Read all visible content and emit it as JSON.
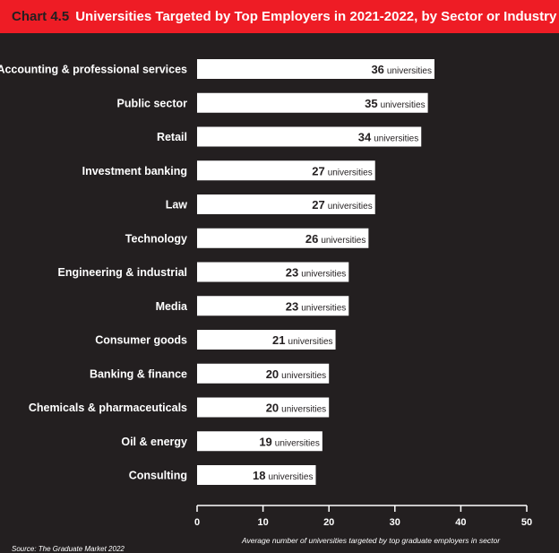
{
  "header": {
    "chart_number": "Chart 4.5",
    "title": "Universities Targeted by Top Employers in 2021-2022, by Sector or Industry"
  },
  "source": "Source: The Graduate Market 2022",
  "colors": {
    "background": "#231f20",
    "title_bar": "#ee1c25",
    "bars": "#ffffff",
    "text": "#ffffff"
  },
  "chart_data": {
    "type": "bar",
    "orientation": "horizontal",
    "categories": [
      "Accounting & professional services",
      "Public sector",
      "Retail",
      "Investment banking",
      "Law",
      "Technology",
      "Engineering & industrial",
      "Media",
      "Consumer goods",
      "Banking & finance",
      "Chemicals & pharmaceuticals",
      "Oil & energy",
      "Consulting"
    ],
    "values": [
      36,
      35,
      34,
      27,
      27,
      26,
      23,
      23,
      21,
      20,
      20,
      19,
      18
    ],
    "value_unit": "universities",
    "xlim": [
      0,
      50
    ],
    "xticks": [
      0,
      10,
      20,
      30,
      40,
      50
    ],
    "xlabel": "Average number of universities targeted by top graduate employers in sector",
    "grid": false,
    "legend": "none"
  }
}
